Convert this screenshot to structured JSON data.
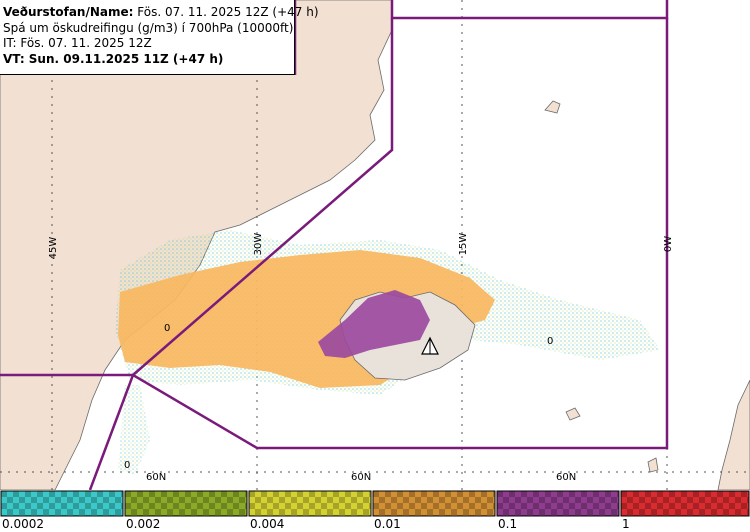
{
  "header": {
    "line1_bold": "Veðurstofan/Name:",
    "line1_rest": " Fös. 07. 11. 2025 12Z (+47 h)",
    "line2": "Spá um öskudreifingu (g/m3) í 700hPa (10000ft)",
    "line3": "IT: Fös. 07. 11. 2025 12Z",
    "line4": "VT: Sun. 09.11.2025 11Z (+47 h)"
  },
  "map": {
    "meridian_labels": [
      "45W",
      "30W",
      "15W",
      "0W"
    ],
    "parallel_labels": [
      "60N",
      "60N",
      "60N"
    ],
    "zero_markers": [
      "0",
      "0",
      "0"
    ],
    "colors": {
      "land": "#f2e0d2",
      "sea": "#ffffff",
      "boundary": "#7a1a7a",
      "ash_low": "#f9b760",
      "ash_high": "#9b4a9e",
      "trace": "#7fd6d6"
    }
  },
  "legend": {
    "ticks": [
      "0.0002",
      "0.002",
      "0.004",
      "0.01",
      "0.1",
      "1"
    ],
    "colors": [
      "#3cc8c8",
      "#8aaa28",
      "#d4d232",
      "#d29034",
      "#8e3c8e",
      "#d82c30"
    ]
  }
}
